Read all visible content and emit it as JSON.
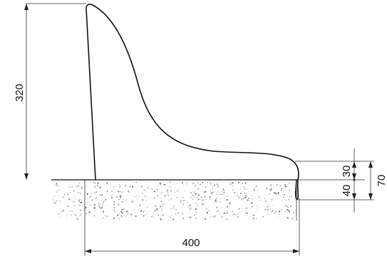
{
  "drawing": {
    "dimensions": {
      "height": "320",
      "width": "400",
      "upper_offset": "30",
      "lower_offset": "40",
      "total_offset": "70"
    },
    "colors": {
      "line": "#111111",
      "fill_speckle": "#555555",
      "background": "#ffffff"
    }
  }
}
